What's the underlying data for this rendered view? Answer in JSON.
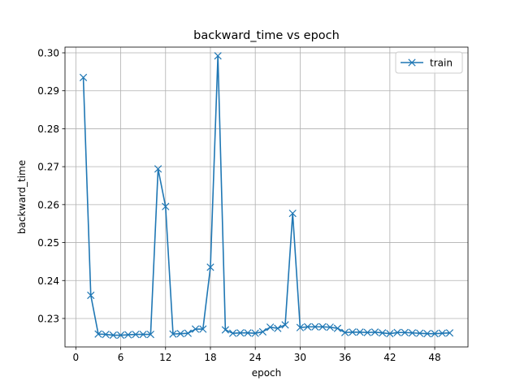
{
  "chart_data": {
    "type": "line",
    "title": "backward_time vs epoch",
    "xlabel": "epoch",
    "ylabel": "backward_time",
    "xlim": [
      -1.45,
      52.45
    ],
    "ylim": [
      0.2225,
      0.3015
    ],
    "xticks": [
      0,
      6,
      12,
      18,
      24,
      30,
      36,
      42,
      48
    ],
    "yticks": [
      0.23,
      0.24,
      0.25,
      0.26,
      0.27,
      0.28,
      0.29,
      0.3
    ],
    "ytick_labels": [
      "0.23",
      "0.24",
      "0.25",
      "0.26",
      "0.27",
      "0.28",
      "0.29",
      "0.30"
    ],
    "grid": true,
    "legend_position": "top-right",
    "series": [
      {
        "name": "train",
        "color": "#1f77b4",
        "marker": "x",
        "x": [
          1,
          2,
          3,
          4,
          5,
          6,
          7,
          8,
          9,
          10,
          11,
          12,
          13,
          14,
          15,
          16,
          17,
          18,
          19,
          20,
          21,
          22,
          23,
          24,
          25,
          26,
          27,
          28,
          29,
          30,
          31,
          32,
          33,
          34,
          35,
          36,
          37,
          38,
          39,
          40,
          41,
          42,
          43,
          44,
          45,
          46,
          47,
          48,
          49,
          50
        ],
        "y": [
          0.2935,
          0.2361,
          0.2259,
          0.2258,
          0.2256,
          0.2256,
          0.2257,
          0.2258,
          0.2258,
          0.2258,
          0.2694,
          0.2595,
          0.2259,
          0.226,
          0.2261,
          0.2272,
          0.2272,
          0.2435,
          0.2992,
          0.227,
          0.2261,
          0.2262,
          0.2262,
          0.2261,
          0.2265,
          0.2277,
          0.2274,
          0.2283,
          0.2577,
          0.2276,
          0.2278,
          0.2278,
          0.2278,
          0.2277,
          0.2274,
          0.2263,
          0.2264,
          0.2264,
          0.2263,
          0.2264,
          0.2262,
          0.226,
          0.2263,
          0.2263,
          0.2262,
          0.2261,
          0.226,
          0.226,
          0.2261,
          0.2262
        ]
      }
    ]
  }
}
